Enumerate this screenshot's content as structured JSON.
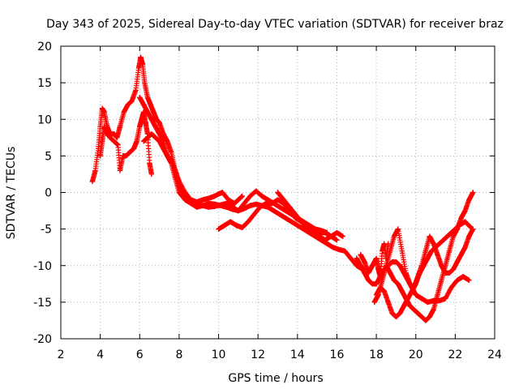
{
  "chart_data": {
    "type": "scatter",
    "title": "Day 343 of 2025, Sidereal Day-to-day VTEC variation (SDTVAR) for receiver braz",
    "xlabel": "GPS time / hours",
    "ylabel": "SDTVAR / TECUs",
    "xlim": [
      2,
      24
    ],
    "ylim": [
      -20,
      20
    ],
    "xticks": [
      "2",
      "4",
      "6",
      "8",
      "10",
      "12",
      "14",
      "16",
      "18",
      "20",
      "22",
      "24"
    ],
    "yticks": [
      "-20",
      "-15",
      "-10",
      "-5",
      "0",
      "5",
      "10",
      "15",
      "20"
    ],
    "grid": true,
    "marker": "+",
    "color": "#ff0000",
    "series": [
      {
        "name": "s1",
        "x": [
          3.6,
          3.75,
          3.9,
          4.0,
          4.1,
          4.2,
          4.35,
          4.5,
          4.7,
          4.85,
          5.0,
          5.2,
          5.4,
          5.6,
          5.8,
          5.95,
          6.05,
          6.15,
          6.25,
          6.4,
          6.55,
          6.7,
          6.85,
          7.0,
          7.2,
          7.4,
          7.6,
          7.8,
          8.0,
          8.3,
          8.6,
          8.9,
          9.2,
          9.5,
          9.8,
          10.0,
          10.2,
          10.5,
          10.8,
          11.0,
          11.2
        ],
        "y": [
          1.5,
          3,
          6,
          9,
          11.5,
          11,
          9,
          8,
          8,
          7.5,
          9,
          11,
          12,
          12.5,
          14,
          17,
          18.5,
          17.5,
          15,
          13,
          12,
          11,
          10,
          9.5,
          8,
          7,
          5.5,
          3,
          1.5,
          0,
          -1,
          -1.3,
          -1,
          -0.8,
          -0.5,
          -0.2,
          0,
          -1,
          -1.5,
          -1,
          -0.5
        ]
      },
      {
        "name": "s2",
        "x": [
          4.0,
          4.1,
          4.2,
          4.35,
          4.5,
          4.7,
          4.9,
          5.0,
          5.15,
          5.3,
          5.5,
          5.7,
          5.85,
          6.0,
          6.1,
          6.2,
          6.3,
          6.4,
          6.5,
          6.6
        ],
        "y": [
          5,
          7,
          9,
          8,
          7.5,
          7,
          6.5,
          3,
          5,
          5,
          5.5,
          6,
          7,
          9,
          10,
          11,
          9.5,
          8,
          4,
          2.5
        ]
      },
      {
        "name": "s3",
        "x": [
          6.0,
          6.2,
          6.4,
          6.6,
          6.8,
          7.0,
          7.2,
          7.4,
          7.6,
          7.8,
          8.0,
          8.3,
          8.6,
          8.9,
          9.2,
          9.5,
          9.8,
          10.1,
          10.4,
          10.7,
          11.0,
          11.3,
          11.6,
          11.9,
          12.2,
          12.5,
          12.8,
          13.1,
          13.4,
          13.7,
          14.0,
          14.3,
          14.6,
          14.9,
          15.2,
          15.5,
          15.8,
          16.1,
          16.4,
          16.7,
          17.0,
          17.3
        ],
        "y": [
          13,
          12,
          11,
          10,
          9,
          8,
          7,
          5,
          4,
          2,
          0,
          -1,
          -1.5,
          -2,
          -1.8,
          -1.5,
          -1.6,
          -1.8,
          -2,
          -2.3,
          -2.5,
          -2.2,
          -1.8,
          -1.6,
          -1.8,
          -2,
          -2.5,
          -3,
          -3.5,
          -4,
          -4.5,
          -5,
          -5.5,
          -6,
          -6.5,
          -7,
          -7.5,
          -7.8,
          -8,
          -9,
          -10,
          -10.5
        ]
      },
      {
        "name": "s4",
        "x": [
          6.2,
          6.4,
          6.6,
          6.8,
          7.0,
          7.2,
          7.4,
          7.6,
          7.8,
          8.0,
          8.3,
          8.6,
          8.9,
          9.2,
          9.5,
          9.8,
          10.1,
          10.4,
          10.7,
          11.0,
          11.3,
          11.6,
          11.9,
          12.2,
          12.5,
          12.8,
          13.1,
          13.4,
          13.7,
          14.0,
          14.3,
          14.6,
          14.9,
          15.2,
          15.5
        ],
        "y": [
          7,
          7.5,
          8,
          7.5,
          7,
          6,
          5,
          4.5,
          3,
          1,
          -0.5,
          -1.2,
          -1.5,
          -1.8,
          -2,
          -1.9,
          -1.7,
          -1.5,
          -2,
          -2.5,
          -1.5,
          -0.5,
          0.2,
          -0.5,
          -1,
          -1.5,
          -2,
          -2.5,
          -3,
          -3.5,
          -4,
          -4.5,
          -5,
          -5.2,
          -5.5
        ]
      },
      {
        "name": "s5",
        "x": [
          10.0,
          10.3,
          10.6,
          10.9,
          11.2,
          11.5,
          11.8,
          12.1,
          12.4,
          12.7,
          13.0,
          13.3,
          13.6,
          13.9,
          14.2,
          14.5,
          14.8,
          15.1,
          15.4,
          15.7,
          16.0,
          16.3
        ],
        "y": [
          -5,
          -4.5,
          -4,
          -4.5,
          -4.8,
          -4,
          -3,
          -2,
          -1.5,
          -1.5,
          -1,
          -1.5,
          -2.5,
          -3.5,
          -4,
          -5,
          -5.5,
          -6,
          -6.5,
          -6,
          -5.5,
          -6
        ]
      },
      {
        "name": "s6",
        "x": [
          13.0,
          13.3,
          13.6,
          13.9,
          14.2,
          14.5,
          14.8,
          15.1,
          15.4,
          15.7,
          16.0
        ],
        "y": [
          0,
          -1,
          -2,
          -3,
          -4,
          -4.5,
          -5,
          -5.5,
          -5.5,
          -6,
          -6.5
        ]
      },
      {
        "name": "s7",
        "x": [
          17.0,
          17.2,
          17.4,
          17.6,
          17.8,
          18.0,
          18.2,
          18.4,
          18.6,
          18.8,
          19.0,
          19.2,
          19.4,
          19.6,
          19.8,
          20.0,
          20.3,
          20.6,
          20.9,
          21.2,
          21.5,
          21.8,
          22.1,
          22.4,
          22.7
        ],
        "y": [
          -9,
          -10,
          -11,
          -12,
          -12.5,
          -12.5,
          -11.5,
          -10.5,
          -10,
          -9.5,
          -9.5,
          -10,
          -11,
          -12,
          -13,
          -14,
          -14.5,
          -15,
          -14.8,
          -14.8,
          -14.5,
          -13,
          -12,
          -11.5,
          -12
        ]
      },
      {
        "name": "s8",
        "x": [
          18.0,
          18.2,
          18.4,
          18.6,
          18.8,
          19.0,
          19.2,
          19.4,
          19.6,
          19.8,
          20.0,
          20.2,
          20.4,
          20.6,
          20.8,
          21.0,
          21.2,
          21.4,
          21.6,
          21.8,
          22.0,
          22.2,
          22.5,
          22.8
        ],
        "y": [
          -14,
          -13,
          -13.5,
          -15,
          -16.5,
          -17,
          -16.5,
          -15.5,
          -14.5,
          -13.5,
          -12.5,
          -11,
          -10,
          -9,
          -8,
          -7.5,
          -7,
          -6.5,
          -6,
          -5.5,
          -5,
          -4.5,
          -4,
          -4.8
        ]
      },
      {
        "name": "s9",
        "x": [
          18.5,
          18.7,
          18.9,
          19.1,
          19.3,
          19.5,
          19.7,
          19.9,
          20.1,
          20.3,
          20.5,
          20.7,
          20.9,
          21.1,
          21.3,
          21.5,
          21.7,
          21.9,
          22.1,
          22.3,
          22.5,
          22.7,
          22.9
        ],
        "y": [
          -10,
          -11,
          -12,
          -12.5,
          -13.5,
          -14.5,
          -15.5,
          -16,
          -16.5,
          -17,
          -17.5,
          -17,
          -16,
          -14,
          -12,
          -10,
          -8,
          -6,
          -5,
          -3.5,
          -2.5,
          -1,
          0
        ]
      },
      {
        "name": "s10",
        "x": [
          17.9,
          18.1,
          18.3,
          18.5,
          18.7,
          18.9,
          19.1,
          19.3,
          19.5,
          19.7,
          19.9,
          20.1,
          20.3,
          20.5,
          20.7,
          20.9,
          21.1,
          21.3,
          21.5,
          21.7,
          21.9,
          22.1,
          22.3,
          22.5,
          22.7,
          22.9
        ],
        "y": [
          -15,
          -14,
          -12,
          -10,
          -8,
          -6,
          -5,
          -8,
          -11,
          -12.5,
          -13,
          -11.5,
          -10,
          -8,
          -6,
          -7,
          -8.5,
          -10,
          -11,
          -11,
          -10.5,
          -9.5,
          -8.5,
          -7.5,
          -6,
          -5
        ]
      },
      {
        "name": "s11",
        "x": [
          17.2,
          17.4,
          17.6,
          17.8,
          18.0,
          18.1,
          18.2,
          18.3,
          18.4,
          18.5,
          18.6
        ],
        "y": [
          -8.5,
          -9.5,
          -11,
          -10,
          -9,
          -10.5,
          -11.5,
          -8,
          -7,
          -9,
          -7
        ]
      }
    ]
  }
}
